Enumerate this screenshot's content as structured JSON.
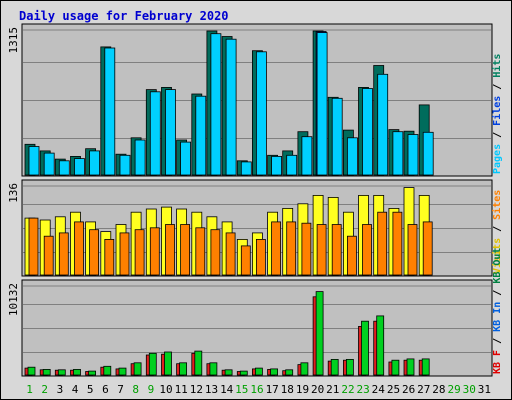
{
  "title": "Daily usage for February 2020",
  "colors": {
    "background": "#d8d8d8",
    "panel": "#c0c0c0",
    "gridline": "#808080",
    "title": "#0000d0"
  },
  "chart_data": [
    {
      "type": "bar",
      "name": "pages-files-hits",
      "ymax_label": "1315",
      "ylim": [
        0,
        1315
      ],
      "series": [
        {
          "name": "Hits",
          "color": "#006c5c",
          "values": [
            280,
            220,
            145,
            170,
            240,
            1170,
            190,
            340,
            780,
            800,
            320,
            740,
            1315,
            1265,
            130,
            1135,
            180,
            220,
            395,
            1315,
            710,
            410,
            800,
            1000,
            415,
            400,
            640
          ]
        },
        {
          "name": "Files",
          "color": "#0040e0",
          "values": [
            0,
            0,
            0,
            0,
            0,
            0,
            0,
            0,
            0,
            0,
            0,
            0,
            0,
            0,
            0,
            0,
            0,
            0,
            0,
            1310,
            0,
            0,
            0,
            0,
            0,
            0,
            0
          ]
        },
        {
          "name": "Pages",
          "color": "#00d0ff",
          "values": [
            260,
            200,
            130,
            150,
            220,
            1160,
            180,
            320,
            760,
            780,
            300,
            720,
            1290,
            1240,
            120,
            1125,
            170,
            180,
            350,
            1300,
            700,
            340,
            790,
            920,
            395,
            370,
            390
          ]
        }
      ],
      "legend": [
        {
          "label": "Pages",
          "color": "#00c8ff"
        },
        {
          "label": "Files",
          "color": "#0040e0"
        },
        {
          "label": "Hits",
          "color": "#008060"
        }
      ]
    },
    {
      "type": "bar",
      "name": "visits-sites",
      "ymax_label": "136",
      "ylim": [
        0,
        136
      ],
      "series": [
        {
          "name": "Visits",
          "color": "#ffff20",
          "values": [
            88,
            85,
            90,
            97,
            82,
            67,
            78,
            97,
            102,
            105,
            102,
            97,
            90,
            82,
            55,
            65,
            97,
            103,
            110,
            123,
            120,
            97,
            123,
            123,
            103,
            135,
            123
          ]
        },
        {
          "name": "Sites",
          "color": "#ff8000",
          "values": [
            88,
            60,
            65,
            82,
            70,
            55,
            65,
            70,
            73,
            78,
            78,
            73,
            70,
            65,
            45,
            55,
            82,
            82,
            80,
            78,
            78,
            60,
            78,
            97,
            97,
            78,
            82
          ]
        }
      ],
      "legend": [
        {
          "label": "Visits",
          "color": "#e0c000"
        },
        {
          "label": "Sites",
          "color": "#ff8000"
        }
      ]
    },
    {
      "type": "bar",
      "name": "kbytes",
      "ymax_label": "10132",
      "ylim": [
        0,
        10132
      ],
      "series": [
        {
          "name": "KB F",
          "color": "#e02020",
          "values": [
            800,
            600,
            550,
            550,
            400,
            900,
            700,
            1300,
            2300,
            2400,
            1300,
            2500,
            1300,
            550,
            400,
            700,
            650,
            500,
            1200,
            9000,
            1600,
            1700,
            5600,
            6200,
            1500,
            1700,
            1700
          ]
        },
        {
          "name": "KB In",
          "color": "#0050e0",
          "values": [
            0,
            0,
            0,
            0,
            0,
            0,
            0,
            0,
            0,
            0,
            0,
            0,
            0,
            0,
            0,
            0,
            0,
            0,
            0,
            0,
            0,
            0,
            0,
            0,
            0,
            0,
            0
          ]
        },
        {
          "name": "KB Out",
          "color": "#00d020",
          "values": [
            900,
            650,
            600,
            650,
            450,
            1000,
            800,
            1400,
            2500,
            2650,
            1400,
            2750,
            1400,
            600,
            450,
            800,
            700,
            600,
            1400,
            9600,
            1800,
            1800,
            6200,
            6800,
            1700,
            1850,
            1850
          ]
        }
      ],
      "legend": [
        {
          "label": "KB F",
          "color": "#e00000"
        },
        {
          "label": "KB In",
          "color": "#0060e0"
        },
        {
          "label": "KB Out",
          "color": "#008040"
        }
      ]
    }
  ],
  "days": [
    {
      "label": "1",
      "weekend": true
    },
    {
      "label": "2",
      "weekend": true
    },
    {
      "label": "3",
      "weekend": false
    },
    {
      "label": "4",
      "weekend": false
    },
    {
      "label": "5",
      "weekend": false
    },
    {
      "label": "6",
      "weekend": false
    },
    {
      "label": "7",
      "weekend": false
    },
    {
      "label": "8",
      "weekend": true
    },
    {
      "label": "9",
      "weekend": true
    },
    {
      "label": "10",
      "weekend": false
    },
    {
      "label": "11",
      "weekend": false
    },
    {
      "label": "12",
      "weekend": false
    },
    {
      "label": "13",
      "weekend": false
    },
    {
      "label": "14",
      "weekend": false
    },
    {
      "label": "15",
      "weekend": true
    },
    {
      "label": "16",
      "weekend": true
    },
    {
      "label": "17",
      "weekend": false
    },
    {
      "label": "18",
      "weekend": false
    },
    {
      "label": "19",
      "weekend": false
    },
    {
      "label": "20",
      "weekend": false
    },
    {
      "label": "21",
      "weekend": false
    },
    {
      "label": "22",
      "weekend": true
    },
    {
      "label": "23",
      "weekend": true
    },
    {
      "label": "24",
      "weekend": false
    },
    {
      "label": "25",
      "weekend": false
    },
    {
      "label": "26",
      "weekend": false
    },
    {
      "label": "27",
      "weekend": false
    },
    {
      "label": "28",
      "weekend": false
    },
    {
      "label": "29",
      "weekend": true
    },
    {
      "label": "30",
      "weekend": true
    },
    {
      "label": "31",
      "weekend": false
    }
  ],
  "weekend_color": "#00a000",
  "weekday_color": "#000000"
}
